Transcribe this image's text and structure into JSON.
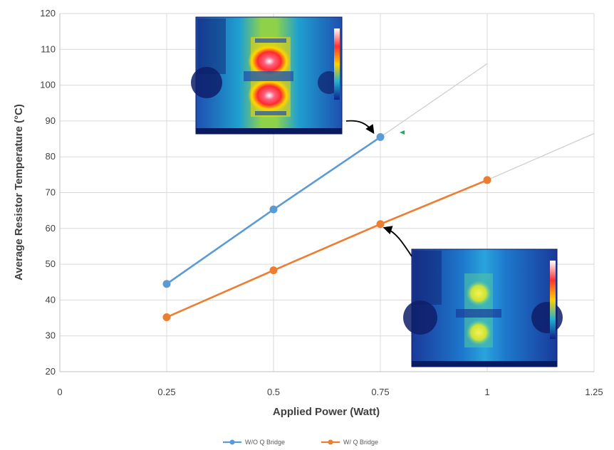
{
  "chart_data": {
    "type": "line",
    "xlabel": "Applied Power  (Watt)",
    "ylabel": "Average Resistor Temperature (°C)",
    "xlim": [
      0,
      1.25
    ],
    "ylim": [
      20,
      120
    ],
    "x_ticks": [
      "0",
      "0.25",
      "0.5",
      "0.75",
      "1",
      "1.25"
    ],
    "y_ticks": [
      "20",
      "30",
      "40",
      "50",
      "60",
      "70",
      "80",
      "90",
      "100",
      "110",
      "120"
    ],
    "grid": true,
    "legend_position": "bottom",
    "series": [
      {
        "name": "W/O Q Bridge",
        "color": "#5b9bd5",
        "x": [
          0.25,
          0.5,
          0.75
        ],
        "y": [
          44.5,
          65.3,
          85.5
        ],
        "trendline": {
          "x": [
            0.75,
            1.0
          ],
          "y": [
            85.5,
            106
          ]
        }
      },
      {
        "name": "W/ Q Bridge",
        "color": "#ed7d31",
        "x": [
          0.25,
          0.5,
          0.75,
          1.0
        ],
        "y": [
          35.2,
          48.3,
          61.2,
          73.5
        ],
        "trendline": {
          "x": [
            1.0,
            1.25
          ],
          "y": [
            73.5,
            86.5
          ]
        }
      }
    ],
    "insets": [
      {
        "name": "thermal-image-without-bridge",
        "attached_to": "W/O Q Bridge",
        "at_x": 0.75
      },
      {
        "name": "thermal-image-with-bridge",
        "attached_to": "W/ Q Bridge",
        "at_x": 0.75
      }
    ]
  }
}
